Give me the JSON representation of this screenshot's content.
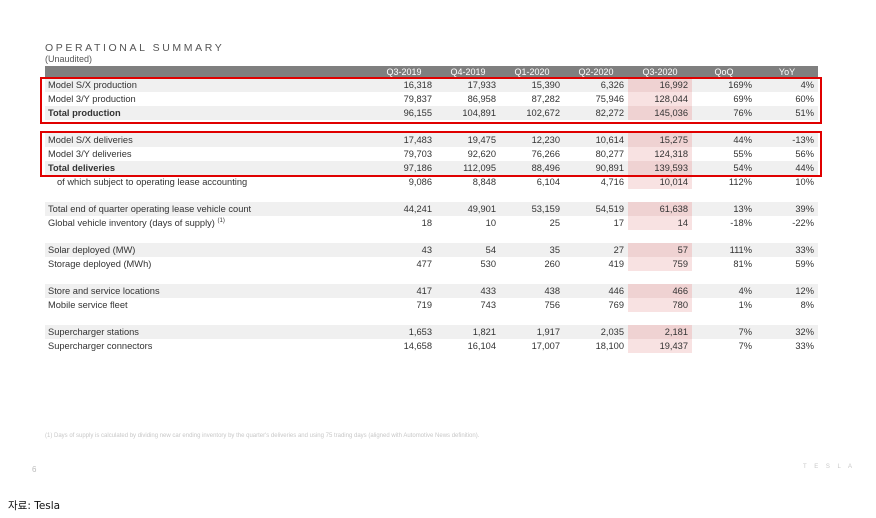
{
  "title": "OPERATIONAL SUMMARY",
  "subtitle": "(Unaudited)",
  "headers": [
    "",
    "Q3-2019",
    "Q4-2019",
    "Q1-2020",
    "Q2-2020",
    "Q3-2020",
    "QoQ",
    "YoY"
  ],
  "rows": [
    {
      "label": "Model S/X production",
      "values": [
        "16,318",
        "17,933",
        "15,390",
        "6,326",
        "16,992",
        "169%",
        "4%"
      ]
    },
    {
      "label": "Model 3/Y production",
      "values": [
        "79,837",
        "86,958",
        "87,282",
        "75,946",
        "128,044",
        "69%",
        "60%"
      ]
    },
    {
      "label": "Total production",
      "values": [
        "96,155",
        "104,891",
        "102,672",
        "82,272",
        "145,036",
        "76%",
        "51%"
      ]
    },
    {
      "label": "Model S/X deliveries",
      "values": [
        "17,483",
        "19,475",
        "12,230",
        "10,614",
        "15,275",
        "44%",
        "-13%"
      ]
    },
    {
      "label": "Model 3/Y deliveries",
      "values": [
        "79,703",
        "92,620",
        "76,266",
        "80,277",
        "124,318",
        "55%",
        "56%"
      ]
    },
    {
      "label": "Total deliveries",
      "values": [
        "97,186",
        "112,095",
        "88,496",
        "90,891",
        "139,593",
        "54%",
        "44%"
      ]
    },
    {
      "label": "of which subject to operating lease accounting",
      "values": [
        "9,086",
        "8,848",
        "6,104",
        "4,716",
        "10,014",
        "112%",
        "10%"
      ]
    },
    {
      "label": "Total end of quarter operating lease vehicle count",
      "values": [
        "44,241",
        "49,901",
        "53,159",
        "54,519",
        "61,638",
        "13%",
        "39%"
      ]
    },
    {
      "label": "Global vehicle inventory (days of supply)",
      "sup": "(1)",
      "values": [
        "18",
        "10",
        "25",
        "17",
        "14",
        "-18%",
        "-22%"
      ]
    },
    {
      "label": "Solar deployed (MW)",
      "values": [
        "43",
        "54",
        "35",
        "27",
        "57",
        "111%",
        "33%"
      ]
    },
    {
      "label": "Storage deployed (MWh)",
      "values": [
        "477",
        "530",
        "260",
        "419",
        "759",
        "81%",
        "59%"
      ]
    },
    {
      "label": "Store and service locations",
      "values": [
        "417",
        "433",
        "438",
        "446",
        "466",
        "4%",
        "12%"
      ]
    },
    {
      "label": "Mobile service fleet",
      "values": [
        "719",
        "743",
        "756",
        "769",
        "780",
        "1%",
        "8%"
      ]
    },
    {
      "label": "Supercharger stations",
      "values": [
        "1,653",
        "1,821",
        "1,917",
        "2,035",
        "2,181",
        "7%",
        "32%"
      ]
    },
    {
      "label": "Supercharger connectors",
      "values": [
        "14,658",
        "16,104",
        "17,007",
        "18,100",
        "19,437",
        "7%",
        "33%"
      ]
    }
  ],
  "footnote": "(1) Days of supply is calculated by dividing new car ending inventory by the quarter's deliveries and using 75 trading days (aligned with Automotive News definition).",
  "page_number": "6",
  "brand_text": "T E S L A",
  "source": "자료: Tesla",
  "colors": {
    "header_bg": "#7f7f7f",
    "highlight_column": "#f5dada",
    "red_box": "#e00000",
    "row_shade": "#f0f0f0"
  }
}
